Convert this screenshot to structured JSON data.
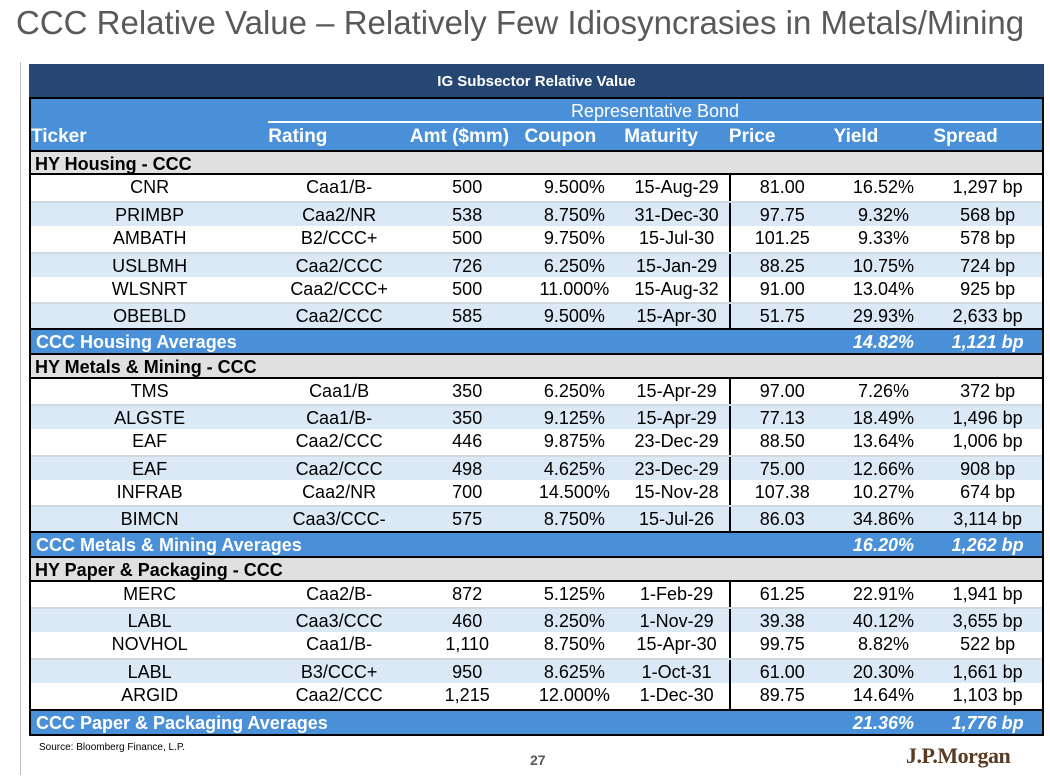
{
  "title": "CCC Relative Value – Relatively Few Idiosyncrasies in Metals/Mining",
  "table": {
    "title": "IG Subsector Relative Value",
    "group_header": "Representative Bond",
    "columns": [
      "Ticker",
      "Rating",
      "Amt ($mm)",
      "Coupon",
      "Maturity",
      "Price",
      "Yield",
      "Spread"
    ],
    "sections": [
      {
        "name": "HY Housing - CCC",
        "rows": [
          [
            "CNR",
            "Caa1/B-",
            "500",
            "9.500%",
            "15-Aug-29",
            "81.00",
            "16.52%",
            "1,297 bp"
          ],
          [
            "PRIMBP",
            "Caa2/NR",
            "538",
            "8.750%",
            "31-Dec-30",
            "97.75",
            "9.32%",
            "568 bp"
          ],
          [
            "AMBATH",
            "B2/CCC+",
            "500",
            "9.750%",
            "15-Jul-30",
            "101.25",
            "9.33%",
            "578 bp"
          ],
          [
            "USLBMH",
            "Caa2/CCC",
            "726",
            "6.250%",
            "15-Jan-29",
            "88.25",
            "10.75%",
            "724 bp"
          ],
          [
            "WLSNRT",
            "Caa2/CCC+",
            "500",
            "11.000%",
            "15-Aug-32",
            "91.00",
            "13.04%",
            "925 bp"
          ],
          [
            "OBEBLD",
            "Caa2/CCC",
            "585",
            "9.500%",
            "15-Apr-30",
            "51.75",
            "29.93%",
            "2,633 bp"
          ]
        ],
        "avg": {
          "label": "CCC Housing Averages",
          "yield": "14.82%",
          "spread": "1,121 bp"
        }
      },
      {
        "name": "HY Metals & Mining - CCC",
        "rows": [
          [
            "TMS",
            "Caa1/B",
            "350",
            "6.250%",
            "15-Apr-29",
            "97.00",
            "7.26%",
            "372 bp"
          ],
          [
            "ALGSTE",
            "Caa1/B-",
            "350",
            "9.125%",
            "15-Apr-29",
            "77.13",
            "18.49%",
            "1,496 bp"
          ],
          [
            "EAF",
            "Caa2/CCC",
            "446",
            "9.875%",
            "23-Dec-29",
            "88.50",
            "13.64%",
            "1,006 bp"
          ],
          [
            "EAF",
            "Caa2/CCC",
            "498",
            "4.625%",
            "23-Dec-29",
            "75.00",
            "12.66%",
            "908 bp"
          ],
          [
            "INFRAB",
            "Caa2/NR",
            "700",
            "14.500%",
            "15-Nov-28",
            "107.38",
            "10.27%",
            "674 bp"
          ],
          [
            "BIMCN",
            "Caa3/CCC-",
            "575",
            "8.750%",
            "15-Jul-26",
            "86.03",
            "34.86%",
            "3,114 bp"
          ]
        ],
        "avg": {
          "label": "CCC Metals & Mining Averages",
          "yield": "16.20%",
          "spread": "1,262 bp"
        }
      },
      {
        "name": "HY Paper & Packaging - CCC",
        "rows": [
          [
            "MERC",
            "Caa2/B-",
            "872",
            "5.125%",
            "1-Feb-29",
            "61.25",
            "22.91%",
            "1,941 bp"
          ],
          [
            "LABL",
            "Caa3/CCC",
            "460",
            "8.250%",
            "1-Nov-29",
            "39.38",
            "40.12%",
            "3,655 bp"
          ],
          [
            "NOVHOL",
            "Caa1/B-",
            "1,110",
            "8.750%",
            "15-Apr-30",
            "99.75",
            "8.82%",
            "522 bp"
          ],
          [
            "LABL",
            "B3/CCC+",
            "950",
            "8.625%",
            "1-Oct-31",
            "61.00",
            "20.30%",
            "1,661 bp"
          ],
          [
            "ARGID",
            "Caa2/CCC",
            "1,215",
            "12.000%",
            "1-Dec-30",
            "89.75",
            "14.64%",
            "1,103 bp"
          ]
        ],
        "avg": {
          "label": "CCC Paper & Packaging Averages",
          "yield": "21.36%",
          "spread": "1,776 bp"
        }
      }
    ]
  },
  "footer": {
    "source": "Source: Bloomberg Finance, L.P.",
    "page": "27",
    "logo": "J.P.Morgan"
  },
  "colors": {
    "header_dark": "#264673",
    "header_blue": "#4a90d9",
    "row_alt": "#dbe8f6",
    "section": "#e0e0e0",
    "logo": "#5a3a22"
  }
}
